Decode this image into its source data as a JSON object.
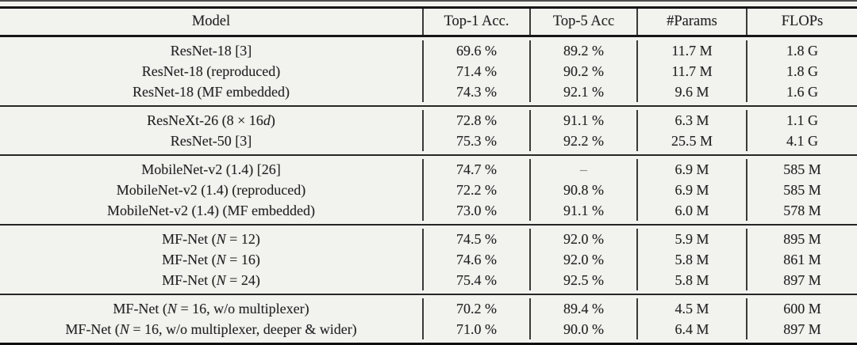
{
  "table": {
    "columns": [
      {
        "key": "model",
        "label": "Model"
      },
      {
        "key": "top1",
        "label": "Top-1 Acc."
      },
      {
        "key": "top5",
        "label": "Top-5 Acc"
      },
      {
        "key": "params",
        "label": "#Params"
      },
      {
        "key": "flops",
        "label": "FLOPs"
      }
    ],
    "missing_value": "–",
    "groups": [
      {
        "rows": [
          {
            "model": "ResNet-18 [3]",
            "top1": "69.6 %",
            "top5": "89.2 %",
            "params": "11.7 M",
            "flops": "1.8 G"
          },
          {
            "model": "ResNet-18 (reproduced)",
            "top1": "71.4 %",
            "top5": "90.2 %",
            "params": "11.7 M",
            "flops": "1.8 G"
          },
          {
            "model": "ResNet-18 (MF embedded)",
            "top1": "74.3 %",
            "top5": "92.1 %",
            "params": "9.6 M",
            "flops": "1.6 G"
          }
        ]
      },
      {
        "rows": [
          {
            "model": "ResNeXt-26 (8 × 16d)",
            "top1": "72.8 %",
            "top5": "91.1 %",
            "params": "6.3 M",
            "flops": "1.1 G"
          },
          {
            "model": "ResNet-50 [3]",
            "top1": "75.3 %",
            "top5": "92.2 %",
            "params": "25.5 M",
            "flops": "4.1 G"
          }
        ]
      },
      {
        "rows": [
          {
            "model": "MobileNet-v2 (1.4) [26]",
            "top1": "74.7 %",
            "top5": "–",
            "params": "6.9 M",
            "flops": "585 M"
          },
          {
            "model": "MobileNet-v2 (1.4) (reproduced)",
            "top1": "72.2 %",
            "top5": "90.8 %",
            "params": "6.9 M",
            "flops": "585 M"
          },
          {
            "model": "MobileNet-v2 (1.4) (MF embedded)",
            "top1": "73.0 %",
            "top5": "91.1 %",
            "params": "6.0 M",
            "flops": "578 M"
          }
        ]
      },
      {
        "rows": [
          {
            "model": "MF-Net (N = 12)",
            "top1": "74.5 %",
            "top5": "92.0 %",
            "params": "5.9 M",
            "flops": "895 M"
          },
          {
            "model": "MF-Net (N = 16)",
            "top1": "74.6 %",
            "top5": "92.0 %",
            "params": "5.8 M",
            "flops": "861 M"
          },
          {
            "model": "MF-Net (N = 24)",
            "top1": "75.4 %",
            "top5": "92.5 %",
            "params": "5.8 M",
            "flops": "897 M"
          }
        ]
      },
      {
        "rows": [
          {
            "model": "MF-Net (N = 16, w/o multiplexer)",
            "top1": "70.2 %",
            "top5": "89.4 %",
            "params": "4.5 M",
            "flops": "600 M"
          },
          {
            "model": "MF-Net (N = 16, w/o multiplexer, deeper & wider)",
            "top1": "71.0 %",
            "top5": "90.0 %",
            "params": "6.4 M",
            "flops": "897 M"
          }
        ]
      }
    ]
  }
}
